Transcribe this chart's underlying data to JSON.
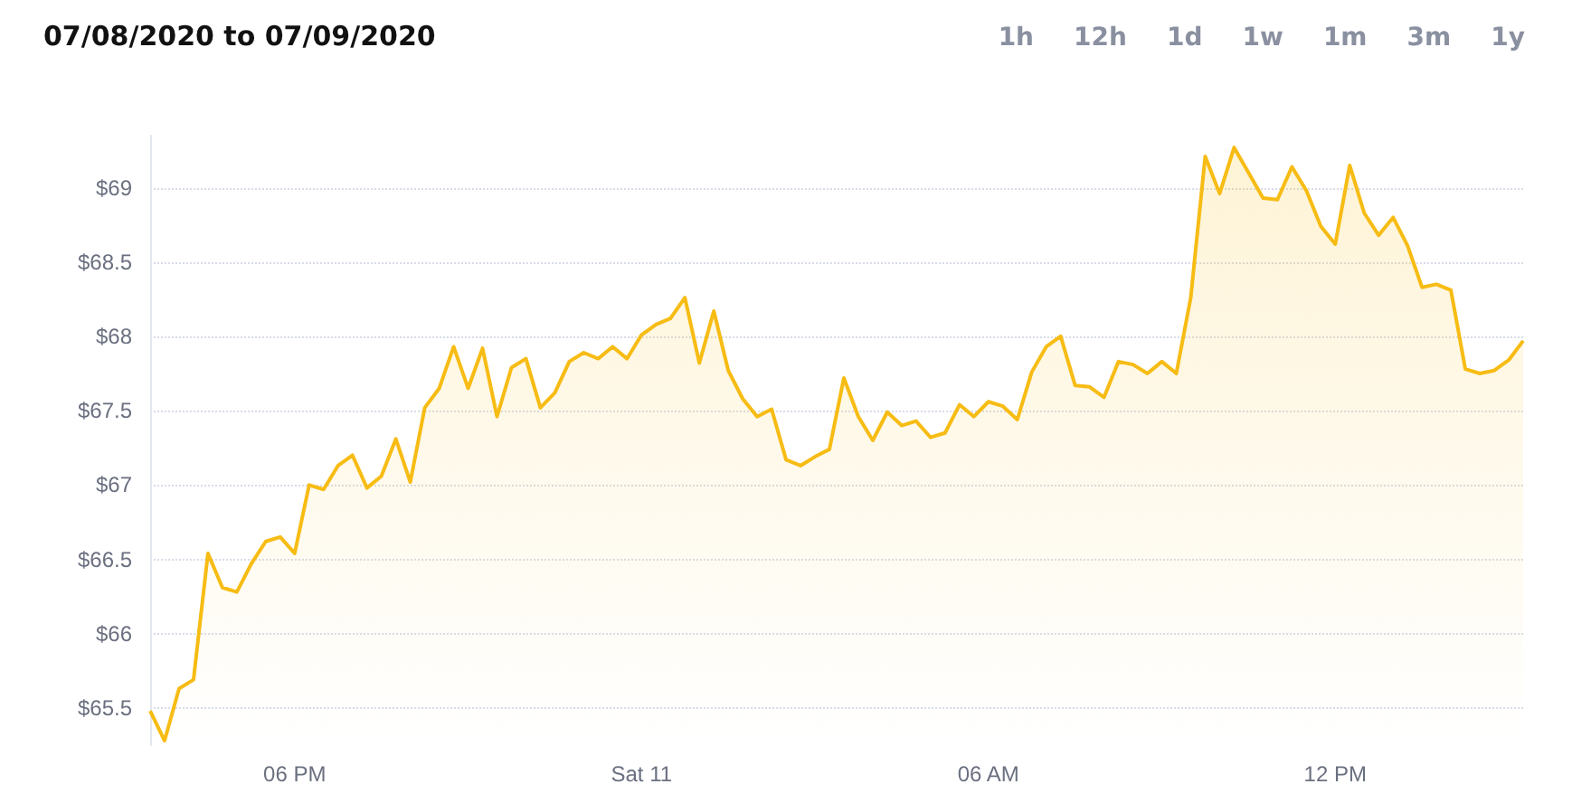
{
  "chart_data": {
    "type": "area",
    "title": "07/08/2020 to 07/09/2020",
    "annotations": [
      "1h",
      "12h",
      "1d",
      "1w",
      "1m",
      "3m",
      "1y"
    ],
    "x": [
      "2020-07-10T15:30",
      "2020-07-10T15:45",
      "2020-07-10T16:00",
      "2020-07-10T16:15",
      "2020-07-10T16:30",
      "2020-07-10T16:45",
      "2020-07-10T17:00",
      "2020-07-10T17:15",
      "2020-07-10T17:30",
      "2020-07-10T17:45",
      "2020-07-10T18:00",
      "2020-07-10T18:15",
      "2020-07-10T18:30",
      "2020-07-10T18:45",
      "2020-07-10T19:00",
      "2020-07-10T19:15",
      "2020-07-10T19:30",
      "2020-07-10T19:45",
      "2020-07-10T20:00",
      "2020-07-10T20:15",
      "2020-07-10T20:30",
      "2020-07-10T20:45",
      "2020-07-10T21:00",
      "2020-07-10T21:15",
      "2020-07-10T21:30",
      "2020-07-10T21:45",
      "2020-07-10T22:00",
      "2020-07-10T22:15",
      "2020-07-10T22:30",
      "2020-07-10T22:45",
      "2020-07-10T23:00",
      "2020-07-10T23:15",
      "2020-07-10T23:30",
      "2020-07-10T23:45",
      "2020-07-11T00:00",
      "2020-07-11T00:15",
      "2020-07-11T00:30",
      "2020-07-11T00:45",
      "2020-07-11T01:00",
      "2020-07-11T01:15",
      "2020-07-11T01:30",
      "2020-07-11T01:45",
      "2020-07-11T02:00",
      "2020-07-11T02:15",
      "2020-07-11T02:30",
      "2020-07-11T02:45",
      "2020-07-11T03:00",
      "2020-07-11T03:15",
      "2020-07-11T03:30",
      "2020-07-11T03:45",
      "2020-07-11T04:00",
      "2020-07-11T04:15",
      "2020-07-11T04:30",
      "2020-07-11T04:45",
      "2020-07-11T05:00",
      "2020-07-11T05:15",
      "2020-07-11T05:30",
      "2020-07-11T05:45",
      "2020-07-11T06:00",
      "2020-07-11T06:15",
      "2020-07-11T06:30",
      "2020-07-11T06:45",
      "2020-07-11T07:00",
      "2020-07-11T07:15",
      "2020-07-11T07:30",
      "2020-07-11T07:45",
      "2020-07-11T08:00",
      "2020-07-11T08:15",
      "2020-07-11T08:30",
      "2020-07-11T08:45",
      "2020-07-11T09:00",
      "2020-07-11T09:15",
      "2020-07-11T09:30",
      "2020-07-11T09:45",
      "2020-07-11T10:00",
      "2020-07-11T10:15",
      "2020-07-11T10:30",
      "2020-07-11T10:45",
      "2020-07-11T11:00",
      "2020-07-11T11:15",
      "2020-07-11T11:30",
      "2020-07-11T11:45",
      "2020-07-11T12:00",
      "2020-07-11T12:15",
      "2020-07-11T12:30",
      "2020-07-11T12:45",
      "2020-07-11T13:00",
      "2020-07-11T13:15",
      "2020-07-11T13:30",
      "2020-07-11T13:45",
      "2020-07-11T14:00",
      "2020-07-11T14:15",
      "2020-07-11T14:30",
      "2020-07-11T14:45",
      "2020-07-11T15:00",
      "2020-07-11T15:15"
    ],
    "series": [
      {
        "color": "#f7bc14",
        "values": [
          65.48,
          65.28,
          65.63,
          65.69,
          66.54,
          66.31,
          66.28,
          66.47,
          66.62,
          66.65,
          66.54,
          67.0,
          66.97,
          67.13,
          67.2,
          66.98,
          67.06,
          67.31,
          67.02,
          67.52,
          67.65,
          67.93,
          67.65,
          67.92,
          67.46,
          67.79,
          67.85,
          67.52,
          67.62,
          67.83,
          67.89,
          67.85,
          67.93,
          67.85,
          68.01,
          68.08,
          68.12,
          68.26,
          67.82,
          68.17,
          67.77,
          67.58,
          67.46,
          67.51,
          67.17,
          67.13,
          67.19,
          67.24,
          67.72,
          67.46,
          67.3,
          67.49,
          67.4,
          67.43,
          67.32,
          67.35,
          67.54,
          67.46,
          67.56,
          67.53,
          67.44,
          67.76,
          67.93,
          68.0,
          67.67,
          67.66,
          67.59,
          67.83,
          67.81,
          67.75,
          67.83,
          67.75,
          68.26,
          69.21,
          68.96,
          69.27,
          69.1,
          68.93,
          68.92,
          69.14,
          68.98,
          68.74,
          68.62,
          69.15,
          68.83,
          68.68,
          68.8,
          68.61,
          68.33,
          68.35,
          68.31,
          67.78,
          67.75,
          67.77,
          67.84,
          67.97
        ]
      }
    ],
    "xlim": [
      "2020-07-10T15:30",
      "2020-07-11T15:15"
    ],
    "xticks": [
      {
        "value": "2020-07-10T18:00",
        "label": "06 PM"
      },
      {
        "value": "2020-07-11T00:00",
        "label": "Sat 11"
      },
      {
        "value": "2020-07-11T06:00",
        "label": "06 AM"
      },
      {
        "value": "2020-07-11T12:00",
        "label": "12 PM"
      }
    ],
    "ylim": [
      65.25,
      69.35
    ],
    "yticks": [
      {
        "value": 65.5,
        "label": "$65.5"
      },
      {
        "value": 66,
        "label": "$66"
      },
      {
        "value": 66.5,
        "label": "$66.5"
      },
      {
        "value": 67,
        "label": "$67"
      },
      {
        "value": 67.5,
        "label": "$67.5"
      },
      {
        "value": 68,
        "label": "$68"
      },
      {
        "value": 68.5,
        "label": "$68.5"
      },
      {
        "value": 69,
        "label": "$69"
      }
    ],
    "grid": "y",
    "line_style": "solid",
    "marker": "none"
  }
}
